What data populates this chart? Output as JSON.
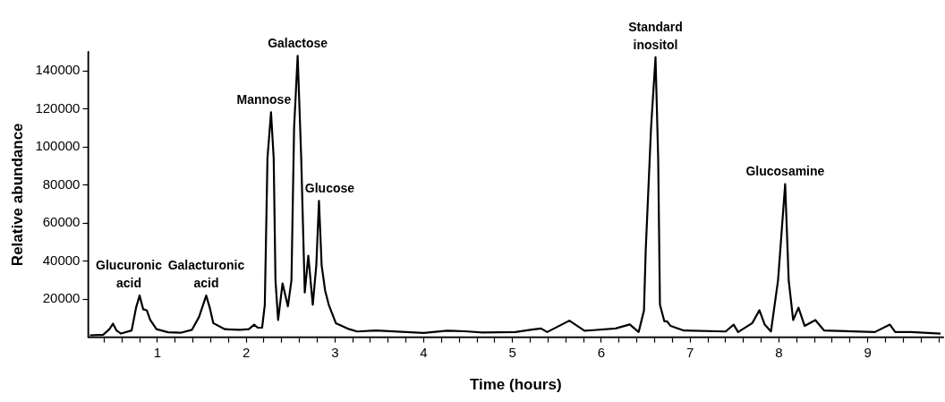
{
  "chart_data": {
    "type": "line",
    "xlabel": "Time (hours)",
    "ylabel": "Relative abundance",
    "color": "#000000",
    "grid": false,
    "legend": false,
    "x": [
      0.24,
      0.39,
      0.46,
      0.5,
      0.54,
      0.59,
      0.71,
      0.76,
      0.8,
      0.84,
      0.88,
      0.92,
      0.99,
      1.12,
      1.26,
      1.39,
      1.47,
      1.55,
      1.59,
      1.63,
      1.76,
      1.93,
      2.03,
      2.09,
      2.13,
      2.18,
      2.21,
      2.24,
      2.28,
      2.31,
      2.33,
      2.36,
      2.41,
      2.47,
      2.51,
      2.54,
      2.58,
      2.62,
      2.66,
      2.7,
      2.75,
      2.79,
      2.82,
      2.85,
      2.89,
      2.93,
      3.01,
      3.16,
      3.25,
      3.46,
      4.0,
      4.26,
      4.46,
      4.66,
      5.03,
      5.22,
      5.32,
      5.39,
      5.64,
      5.81,
      5.91,
      6.16,
      6.32,
      6.42,
      6.48,
      6.5,
      6.56,
      6.61,
      6.64,
      6.66,
      6.71,
      6.74,
      6.78,
      6.93,
      7.4,
      7.49,
      7.54,
      7.7,
      7.78,
      7.84,
      7.91,
      7.99,
      8.07,
      8.11,
      8.16,
      8.22,
      8.29,
      8.41,
      8.51,
      9.08,
      9.25,
      9.31,
      9.49,
      9.82
    ],
    "values": [
      1000,
      1300,
      4200,
      7100,
      3500,
      1900,
      3500,
      15500,
      21900,
      14700,
      14200,
      9000,
      4200,
      2600,
      2300,
      3900,
      10700,
      21900,
      15500,
      7400,
      4200,
      3900,
      4200,
      6600,
      5000,
      5000,
      17100,
      94200,
      118300,
      94200,
      29900,
      9000,
      28300,
      16200,
      29900,
      110300,
      148000,
      94200,
      23500,
      42800,
      17100,
      37800,
      71700,
      37800,
      24300,
      17100,
      7400,
      4200,
      3000,
      3500,
      2200,
      3400,
      3100,
      2500,
      2700,
      4000,
      4600,
      2700,
      8700,
      3400,
      3700,
      4600,
      6700,
      2700,
      14000,
      46000,
      110300,
      147200,
      94200,
      17100,
      8300,
      8300,
      5900,
      3500,
      3000,
      6600,
      2700,
      7400,
      14200,
      6600,
      3000,
      29900,
      80500,
      29900,
      9000,
      15500,
      5900,
      9000,
      3500,
      2700,
      6600,
      2700,
      2700,
      1900
    ],
    "xlim": [
      0.22,
      9.85
    ],
    "ylim": [
      0,
      150000
    ],
    "xticks": [
      {
        "value": 0.4,
        "label": null
      },
      {
        "value": 0.6,
        "label": null
      },
      {
        "value": 0.8,
        "label": null
      },
      1,
      {
        "value": 1.2,
        "label": null
      },
      {
        "value": 1.4,
        "label": null
      },
      {
        "value": 1.6,
        "label": null
      },
      {
        "value": 1.8,
        "label": null
      },
      2,
      {
        "value": 2.2,
        "label": null
      },
      {
        "value": 2.4,
        "label": null
      },
      {
        "value": 2.6,
        "label": null
      },
      {
        "value": 2.8,
        "label": null
      },
      3,
      {
        "value": 3.2,
        "label": null
      },
      {
        "value": 3.4,
        "label": null
      },
      {
        "value": 3.6,
        "label": null
      },
      {
        "value": 3.8,
        "label": null
      },
      4,
      {
        "value": 4.2,
        "label": null
      },
      {
        "value": 4.4,
        "label": null
      },
      {
        "value": 4.6,
        "label": null
      },
      {
        "value": 4.8,
        "label": null
      },
      5,
      {
        "value": 5.2,
        "label": null
      },
      {
        "value": 5.4,
        "label": null
      },
      {
        "value": 5.6,
        "label": null
      },
      {
        "value": 5.8,
        "label": null
      },
      6,
      {
        "value": 6.2,
        "label": null
      },
      {
        "value": 6.4,
        "label": null
      },
      {
        "value": 6.6,
        "label": null
      },
      {
        "value": 6.8,
        "label": null
      },
      7,
      {
        "value": 7.2,
        "label": null
      },
      {
        "value": 7.4,
        "label": null
      },
      {
        "value": 7.6,
        "label": null
      },
      {
        "value": 7.8,
        "label": null
      },
      8,
      {
        "value": 8.2,
        "label": null
      },
      {
        "value": 8.4,
        "label": null
      },
      {
        "value": 8.6,
        "label": null
      },
      {
        "value": 8.8,
        "label": null
      },
      9,
      {
        "value": 9.2,
        "label": null
      },
      {
        "value": 9.4,
        "label": null
      },
      {
        "value": 9.6,
        "label": null
      },
      {
        "value": 9.8,
        "label": null
      }
    ],
    "yticks": [
      20000,
      40000,
      60000,
      80000,
      100000,
      120000,
      140000
    ],
    "annotations": [
      {
        "text": "Glucuronic\nacid",
        "x": 0.8,
        "y": 21900
      },
      {
        "text": "Galacturonic\nacid",
        "x": 1.55,
        "y": 21900
      },
      {
        "text": "Mannose",
        "x": 2.28,
        "y": 118300
      },
      {
        "text": "Galactose",
        "x": 2.58,
        "y": 148000
      },
      {
        "text": "Glucose",
        "x": 2.82,
        "y": 71700
      },
      {
        "text": "Standard\ninositol",
        "x": 6.61,
        "y": 147200
      },
      {
        "text": "Glucosamine",
        "x": 8.07,
        "y": 80500
      }
    ]
  }
}
